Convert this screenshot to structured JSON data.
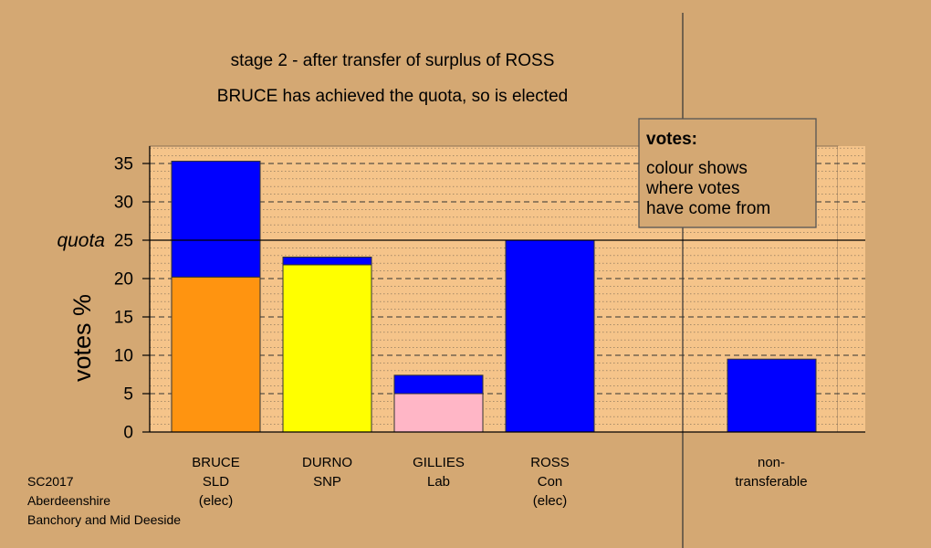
{
  "title": "stage 2 - after transfer of surplus of ROSS",
  "subtitle": "BRUCE has achieved the quota, so is elected",
  "legend_box": {
    "heading": "votes:",
    "lines": [
      "colour shows",
      "where votes",
      "have come from"
    ]
  },
  "footer": [
    "SC2017",
    "Aberdeenshire",
    "Banchory and Mid Deeside"
  ],
  "colors": {
    "background": "#D4A873",
    "plot_area": "#F5C48A",
    "BRUCE": "#FF9410",
    "DURNO": "#FFFF00",
    "GILLIES": "#FFB6C6",
    "ROSS": "#0000FF"
  },
  "chart_data": {
    "type": "bar",
    "stacked": true,
    "ylabel": "votes %",
    "ylim": [
      0,
      37
    ],
    "yticks": [
      0,
      5,
      10,
      15,
      20,
      25,
      30,
      35
    ],
    "quota": {
      "label": "quota",
      "value": 25
    },
    "grid": true,
    "candidates": [
      {
        "name": "BRUCE",
        "party": "SLD",
        "note": "(elec)",
        "segments": [
          {
            "from": "BRUCE",
            "value": 20.2
          },
          {
            "from": "ROSS",
            "value": 15.1
          }
        ]
      },
      {
        "name": "DURNO",
        "party": "SNP",
        "note": "",
        "segments": [
          {
            "from": "DURNO",
            "value": 21.8
          },
          {
            "from": "ROSS",
            "value": 1.0
          }
        ]
      },
      {
        "name": "GILLIES",
        "party": "Lab",
        "note": "",
        "segments": [
          {
            "from": "GILLIES",
            "value": 5.0
          },
          {
            "from": "ROSS",
            "value": 2.4
          }
        ]
      },
      {
        "name": "ROSS",
        "party": "Con",
        "note": "(elec)",
        "segments": [
          {
            "from": "ROSS",
            "value": 25.0
          }
        ]
      }
    ],
    "non_transferable": {
      "line1": "non-",
      "line2": "transferable",
      "value": 9.5,
      "color": "#0000FF"
    }
  }
}
